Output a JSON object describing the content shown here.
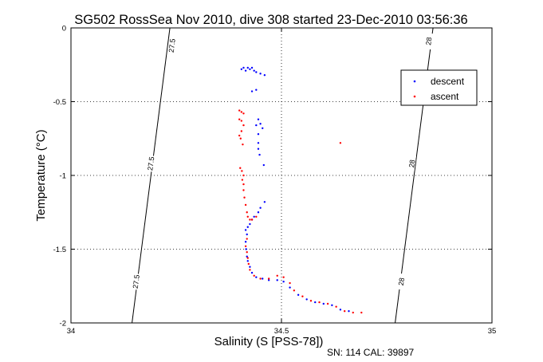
{
  "chart_data": {
    "type": "scatter",
    "title": "SG502 RossSea Nov 2010, dive 308 started 23-Dec-2010 03:56:36",
    "xlabel": "Salinity (S [PSS-78])",
    "ylabel": "Temperature (°C)",
    "xlim": [
      34,
      35
    ],
    "ylim": [
      -2,
      0
    ],
    "xticks": [
      {
        "value": 34,
        "label": "34"
      },
      {
        "value": 34.5,
        "label": "34.5"
      },
      {
        "value": 35,
        "label": "35"
      }
    ],
    "yticks": [
      {
        "value": 0,
        "label": "0"
      },
      {
        "value": -0.5,
        "label": "-0.5"
      },
      {
        "value": -1,
        "label": "-1"
      },
      {
        "value": -1.5,
        "label": "-1.5"
      },
      {
        "value": -2,
        "label": "-2"
      }
    ],
    "grid": true,
    "legend": {
      "placement": "top-right"
    },
    "series": [
      {
        "name": "descent",
        "color": "#0000ff",
        "points": [
          [
            34.405,
            -0.28
          ],
          [
            34.41,
            -0.27
          ],
          [
            34.415,
            -0.29
          ],
          [
            34.42,
            -0.27
          ],
          [
            34.425,
            -0.28
          ],
          [
            34.43,
            -0.27
          ],
          [
            34.435,
            -0.29
          ],
          [
            34.44,
            -0.3
          ],
          [
            34.45,
            -0.31
          ],
          [
            34.46,
            -0.32
          ],
          [
            34.44,
            -0.42
          ],
          [
            34.43,
            -0.43
          ],
          [
            34.445,
            -0.62
          ],
          [
            34.45,
            -0.65
          ],
          [
            34.455,
            -0.68
          ],
          [
            34.44,
            -0.66
          ],
          [
            34.445,
            -0.72
          ],
          [
            34.445,
            -0.78
          ],
          [
            34.445,
            -0.82
          ],
          [
            34.448,
            -0.86
          ],
          [
            34.458,
            -0.93
          ],
          [
            34.46,
            -1.18
          ],
          [
            34.45,
            -1.22
          ],
          [
            34.445,
            -1.25
          ],
          [
            34.435,
            -1.28
          ],
          [
            34.43,
            -1.3
          ],
          [
            34.425,
            -1.33
          ],
          [
            34.42,
            -1.35
          ],
          [
            34.415,
            -1.37
          ],
          [
            34.418,
            -1.4
          ],
          [
            34.415,
            -1.45
          ],
          [
            34.416,
            -1.5
          ],
          [
            34.418,
            -1.55
          ],
          [
            34.42,
            -1.58
          ],
          [
            34.425,
            -1.62
          ],
          [
            34.43,
            -1.66
          ],
          [
            34.44,
            -1.69
          ],
          [
            34.455,
            -1.7
          ],
          [
            34.47,
            -1.71
          ],
          [
            34.49,
            -1.71
          ],
          [
            34.505,
            -1.72
          ],
          [
            34.52,
            -1.76
          ],
          [
            34.54,
            -1.81
          ],
          [
            34.56,
            -1.84
          ],
          [
            34.58,
            -1.86
          ],
          [
            34.6,
            -1.87
          ],
          [
            34.62,
            -1.88
          ],
          [
            34.64,
            -1.91
          ],
          [
            34.66,
            -1.92
          ]
        ]
      },
      {
        "name": "ascent",
        "color": "#ff0000",
        "points": [
          [
            34.4,
            -0.56
          ],
          [
            34.405,
            -0.57
          ],
          [
            34.41,
            -0.58
          ],
          [
            34.4,
            -0.62
          ],
          [
            34.405,
            -0.63
          ],
          [
            34.41,
            -0.66
          ],
          [
            34.405,
            -0.7
          ],
          [
            34.4,
            -0.73
          ],
          [
            34.403,
            -0.75
          ],
          [
            34.408,
            -0.79
          ],
          [
            34.402,
            -0.95
          ],
          [
            34.406,
            -0.97
          ],
          [
            34.41,
            -1.0
          ],
          [
            34.407,
            -1.03
          ],
          [
            34.41,
            -1.06
          ],
          [
            34.41,
            -1.1
          ],
          [
            34.412,
            -1.15
          ],
          [
            34.415,
            -1.2
          ],
          [
            34.418,
            -1.25
          ],
          [
            34.42,
            -1.28
          ],
          [
            34.425,
            -1.3
          ],
          [
            34.43,
            -1.3
          ],
          [
            34.44,
            -1.28
          ],
          [
            34.418,
            -1.43
          ],
          [
            34.415,
            -1.48
          ],
          [
            34.418,
            -1.52
          ],
          [
            34.42,
            -1.56
          ],
          [
            34.422,
            -1.6
          ],
          [
            34.425,
            -1.64
          ],
          [
            34.435,
            -1.68
          ],
          [
            34.45,
            -1.7
          ],
          [
            34.47,
            -1.7
          ],
          [
            34.49,
            -1.68
          ],
          [
            34.505,
            -1.69
          ],
          [
            34.52,
            -1.73
          ],
          [
            34.53,
            -1.78
          ],
          [
            34.55,
            -1.82
          ],
          [
            34.57,
            -1.85
          ],
          [
            34.59,
            -1.86
          ],
          [
            34.61,
            -1.87
          ],
          [
            34.63,
            -1.89
          ],
          [
            34.65,
            -1.92
          ],
          [
            34.67,
            -1.93
          ],
          [
            34.69,
            -1.93
          ],
          [
            34.64,
            -0.78
          ]
        ]
      }
    ],
    "isopycnals": [
      {
        "label": "27.5",
        "points": [
          [
            34.235,
            0
          ],
          [
            34.145,
            -2
          ]
        ],
        "label_positions": [
          [
            34.24,
            -0.12
          ],
          [
            34.19,
            -0.92
          ],
          [
            34.155,
            -1.72
          ]
        ]
      },
      {
        "label": "28",
        "points": [
          [
            34.86,
            0
          ],
          [
            34.77,
            -2
          ]
        ],
        "label_positions": [
          [
            34.85,
            -0.09
          ],
          [
            34.81,
            -0.92
          ],
          [
            34.785,
            -1.72
          ]
        ]
      }
    ],
    "footer": "SN: 114  CAL: 39897"
  }
}
